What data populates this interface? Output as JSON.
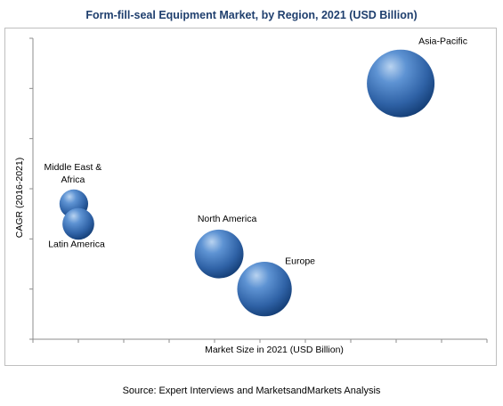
{
  "chart_data": {
    "type": "bubble",
    "title": "Form-fill-seal Equipment Market, by Region, 2021 (USD Billion)",
    "xlabel": "Market Size in 2021 (USD Billion)",
    "ylabel": "CAGR (2016-2021)",
    "ticks_labeled": false,
    "grid": false,
    "legend": "none",
    "bubble_color": "#3a70b5",
    "points": [
      {
        "label": "Asia-Pacific",
        "x": 8.1,
        "y": 5.1,
        "size": 1.0
      },
      {
        "label": "Middle East & Africa",
        "x": 0.9,
        "y": 2.7,
        "size": 0.18
      },
      {
        "label": "Latin America",
        "x": 1.0,
        "y": 2.3,
        "size": 0.22
      },
      {
        "label": "North America",
        "x": 4.1,
        "y": 1.7,
        "size": 0.52
      },
      {
        "label": "Europe",
        "x": 5.1,
        "y": 1.0,
        "size": 0.65
      }
    ],
    "xlim": [
      0,
      10
    ],
    "ylim": [
      0,
      6
    ]
  },
  "source": "Source: Expert Interviews and MarketsandMarkets Analysis"
}
